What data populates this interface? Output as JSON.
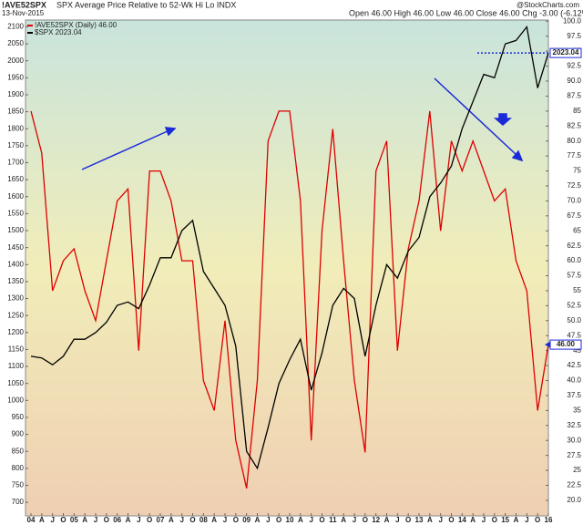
{
  "chart_data": {
    "type": "line",
    "title": "!AVE52SPX",
    "subtitle": "SPX Average Price Relative to 52-Wk Hi Lo INDX",
    "date": "13-Nov-2015",
    "quote": "Open 46.00  High 46.00  Low 46.00  Close 46.00  Chg -3.00 (-6.12%)",
    "source": "@StockCharts.com",
    "categories": [
      "04",
      "A",
      "J",
      "O",
      "05",
      "A",
      "J",
      "O",
      "06",
      "A",
      "J",
      "O",
      "07",
      "A",
      "J",
      "O",
      "08",
      "A",
      "J",
      "O",
      "09",
      "A",
      "J",
      "O",
      "10",
      "A",
      "J",
      "O",
      "11",
      "A",
      "J",
      "O",
      "12",
      "A",
      "J",
      "O",
      "13",
      "A",
      "J",
      "O",
      "14",
      "A",
      "J",
      "O",
      "15",
      "A",
      "J",
      "O",
      "16"
    ],
    "series": [
      {
        "name": "!AVE52SPX (Daily) 46.00",
        "color": "#dd0000",
        "axis": "y2",
        "values": [
          85,
          78,
          55,
          60,
          62,
          55,
          50,
          60,
          70,
          72,
          45,
          75,
          75,
          70,
          60,
          60,
          40,
          35,
          50,
          30,
          22,
          40,
          80,
          85,
          85,
          70,
          30,
          65,
          82,
          60,
          40,
          28,
          75,
          80,
          45,
          62,
          70,
          85,
          65,
          80,
          75,
          80,
          75,
          70,
          72,
          60,
          55,
          35,
          46
        ]
      },
      {
        "name": "$SPX 2023.04",
        "color": "#000000",
        "axis": "y",
        "values": [
          1130,
          1125,
          1105,
          1130,
          1180,
          1180,
          1200,
          1230,
          1280,
          1290,
          1270,
          1340,
          1420,
          1420,
          1500,
          1530,
          1380,
          1330,
          1280,
          1160,
          850,
          800,
          920,
          1050,
          1120,
          1180,
          1030,
          1140,
          1280,
          1330,
          1300,
          1130,
          1280,
          1400,
          1360,
          1440,
          1480,
          1600,
          1640,
          1690,
          1800,
          1880,
          1960,
          1950,
          2050,
          2060,
          2100,
          1920,
          2023
        ]
      }
    ],
    "ylim": [
      660,
      2120
    ],
    "yticks": [
      700,
      750,
      800,
      850,
      900,
      950,
      1000,
      1050,
      1100,
      1150,
      1200,
      1250,
      1300,
      1350,
      1400,
      1450,
      1500,
      1550,
      1600,
      1650,
      1700,
      1750,
      1800,
      1850,
      1900,
      1950,
      2000,
      2050,
      2100
    ],
    "y2lim": [
      17.4,
      100.2
    ],
    "y2ticks": [
      {
        "value": 20,
        "label": "20.0"
      },
      22.5,
      25,
      27.5,
      {
        "value": 30,
        "label": "30.0"
      },
      32.5,
      35,
      37.5,
      {
        "value": 40,
        "label": "40.0"
      },
      42.5,
      45,
      47.5,
      {
        "value": 50,
        "label": "50.0"
      },
      52.5,
      55,
      57.5,
      {
        "value": 60,
        "label": "60.0"
      },
      62.5,
      65,
      67.5,
      {
        "value": 70,
        "label": "70.0"
      },
      72.5,
      75,
      77.5,
      {
        "value": 80,
        "label": "80.0"
      },
      82.5,
      85,
      87.5,
      {
        "value": 90,
        "label": "90.0"
      },
      92.5,
      95,
      97.5,
      {
        "value": 100,
        "label": "100.0"
      }
    ],
    "annotations": [
      {
        "text": "2023.04",
        "value": 2023.04,
        "axis": "y"
      },
      {
        "text": "46.00",
        "value": 46,
        "axis": "y2"
      }
    ]
  }
}
